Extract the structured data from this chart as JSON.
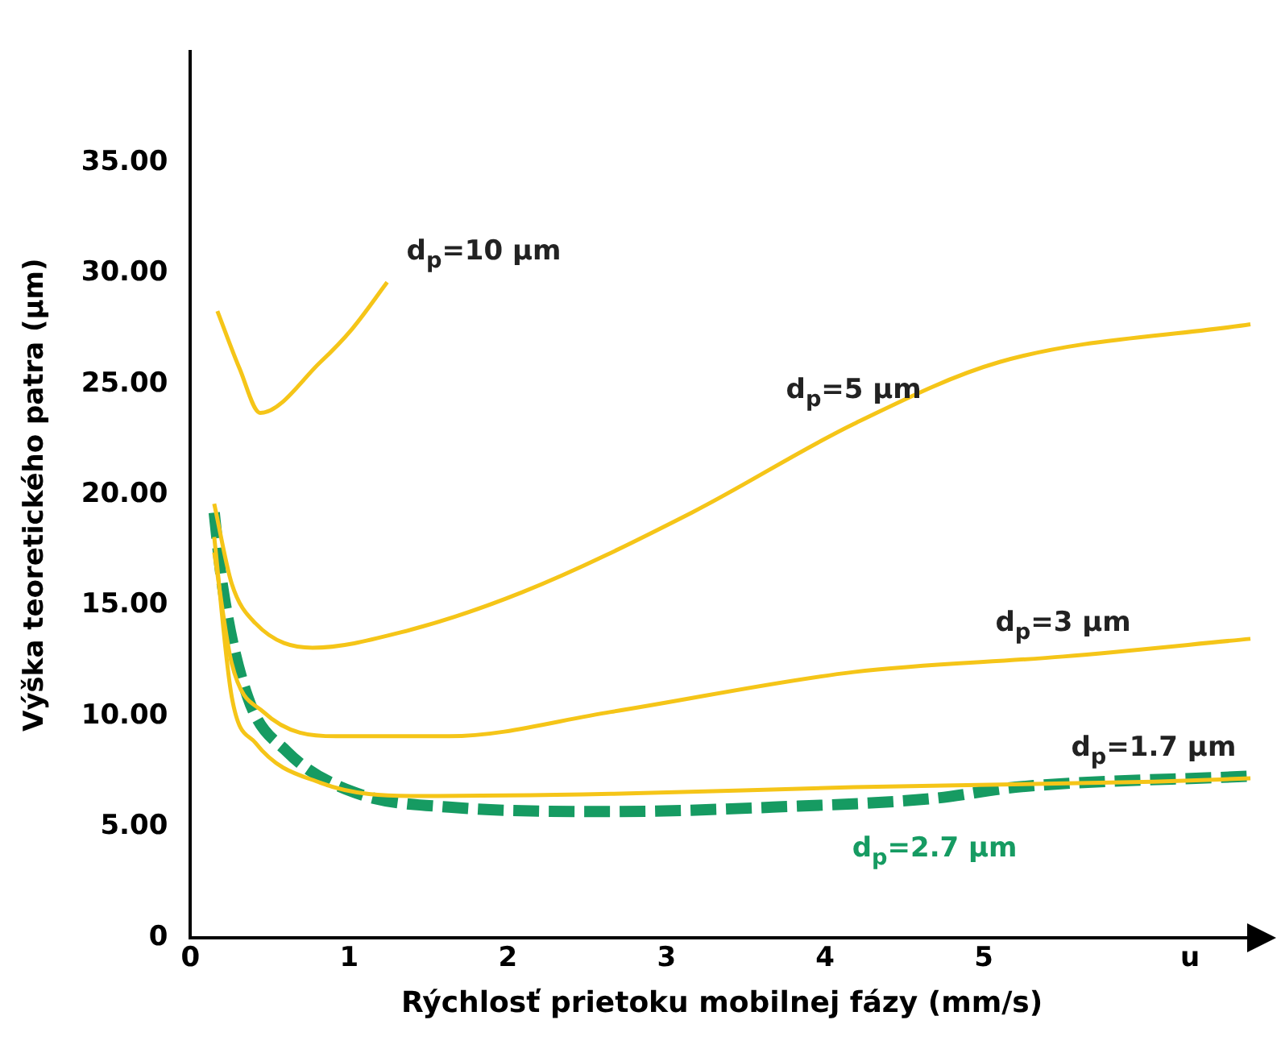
{
  "chart_data": {
    "type": "line",
    "xlabel": "Rýchlosť prietoku mobilnej fázy (mm/s)",
    "ylabel": "Výška teoretického patra (µm)",
    "xlim": [
      0,
      6.7
    ],
    "xticks": [
      0,
      1,
      2,
      3,
      4,
      5,
      {
        "value": 6.3,
        "label": "u"
      }
    ],
    "ylim": [
      0,
      40
    ],
    "yticks": [
      0,
      {
        "value": 5,
        "label": "5.00"
      },
      {
        "value": 10,
        "label": "10.00"
      },
      {
        "value": 15,
        "label": "15.00"
      },
      {
        "value": 20,
        "label": "20.00"
      },
      {
        "value": 25,
        "label": "25.00"
      },
      {
        "value": 30,
        "label": "30.00"
      },
      {
        "value": 35,
        "label": "35.00"
      }
    ],
    "grid": false,
    "legend": false,
    "marker": "none",
    "series": [
      {
        "color": "#f5c518",
        "x": [
          0.17,
          0.31,
          0.44,
          0.82,
          1.02,
          1.24
        ],
        "values": [
          28.3,
          25.7,
          23.7,
          26.0,
          27.5,
          29.6
        ]
      },
      {
        "color": "#f5c518",
        "x": [
          0.15,
          0.26,
          0.41,
          0.77,
          1.33,
          2.09,
          3.16,
          4.18,
          5.1,
          6.68
        ],
        "values": [
          19.6,
          16.0,
          14.2,
          13.1,
          13.8,
          15.6,
          19.2,
          23.2,
          26.0,
          27.7
        ]
      },
      {
        "color": "#f5c518",
        "x": [
          0.15,
          0.26,
          0.46,
          0.92,
          1.63,
          2.65,
          4.18,
          5.5,
          6.68
        ],
        "values": [
          17.4,
          12.4,
          10.2,
          9.1,
          9.1,
          10.2,
          12.0,
          12.7,
          13.5
        ]
      },
      {
        "color": "#f5c518",
        "x": [
          0.15,
          0.26,
          0.41,
          0.82,
          1.43,
          2.65,
          4.18,
          6.07,
          6.68
        ],
        "values": [
          18.1,
          10.9,
          8.8,
          7.0,
          6.4,
          6.5,
          6.8,
          7.05,
          7.2
        ]
      },
      {
        "color": "#169b62",
        "line_style": "dashed",
        "x": [
          0.15,
          0.2,
          0.36,
          0.61,
          1.02,
          1.63,
          2.65,
          3.67,
          4.69,
          5.2,
          6.68
        ],
        "values": [
          19.2,
          16.0,
          10.9,
          8.4,
          6.6,
          5.9,
          5.7,
          5.9,
          6.3,
          6.8,
          7.3
        ]
      }
    ],
    "annotations": [
      {
        "text": "d$_{p}$=10 µm",
        "x": 1.24,
        "y": 29.6
      },
      {
        "text": "d$_{p}$=5 µm",
        "x": 4.18,
        "y": 23.2
      },
      {
        "text": "d$_{p}$=3 µm",
        "x": 5.5,
        "y": 12.7
      },
      {
        "text": "d$_{p}$=1.7 µm",
        "x": 6.07,
        "y": 7.05
      },
      {
        "text": "d$_{p}$=2.7 µm",
        "x": 4.69,
        "y": 6.3
      }
    ]
  }
}
